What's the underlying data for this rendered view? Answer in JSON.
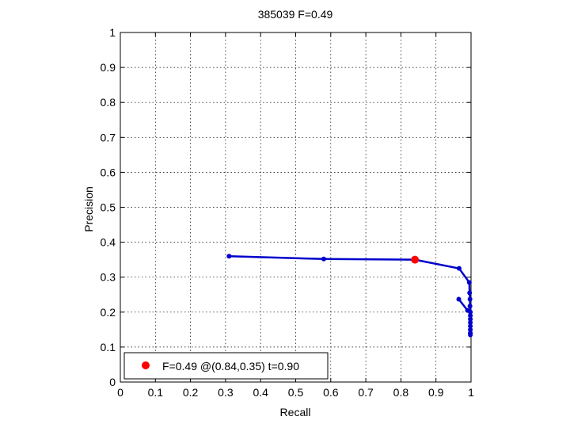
{
  "chart_data": {
    "type": "line",
    "title": "385039 F=0.49",
    "xlabel": "Recall",
    "ylabel": "Precision",
    "xlim": [
      0,
      1
    ],
    "ylim": [
      0,
      1
    ],
    "xticks": [
      0,
      0.1,
      0.2,
      0.3,
      0.4,
      0.5,
      0.6,
      0.7,
      0.8,
      0.9,
      1
    ],
    "yticks": [
      0,
      0.1,
      0.2,
      0.3,
      0.4,
      0.5,
      0.6,
      0.7,
      0.8,
      0.9,
      1
    ],
    "xtick_labels": [
      "0",
      "0.1",
      "0.2",
      "0.3",
      "0.4",
      "0.5",
      "0.6",
      "0.7",
      "0.8",
      "0.9",
      "1"
    ],
    "ytick_labels": [
      "0",
      "0.1",
      "0.2",
      "0.3",
      "0.4",
      "0.5",
      "0.6",
      "0.7",
      "0.8",
      "0.9",
      "1"
    ],
    "grid": true,
    "legend_position": "bottom-left",
    "series": [
      {
        "color": "#0000cc",
        "points": [
          [
            0.31,
            0.36
          ],
          [
            0.58,
            0.352
          ],
          [
            0.84,
            0.35
          ],
          [
            0.966,
            0.325
          ],
          [
            0.995,
            0.285
          ],
          [
            0.996,
            0.255
          ],
          [
            0.997,
            0.237
          ],
          [
            0.997,
            0.217
          ],
          [
            0.998,
            0.2
          ],
          [
            0.998,
            0.19
          ],
          [
            0.998,
            0.18
          ],
          [
            0.998,
            0.17
          ],
          [
            0.998,
            0.16
          ],
          [
            0.998,
            0.15
          ],
          [
            0.998,
            0.14
          ],
          [
            0.998,
            0.135
          ]
        ]
      },
      {
        "color": "#0000cc",
        "points": [
          [
            0.965,
            0.237
          ],
          [
            0.99,
            0.205
          ]
        ]
      }
    ],
    "highlight": {
      "x": 0.84,
      "y": 0.35,
      "color": "#ff0000",
      "label": "F=0.49 @(0.84,0.35) t=0.90"
    }
  }
}
